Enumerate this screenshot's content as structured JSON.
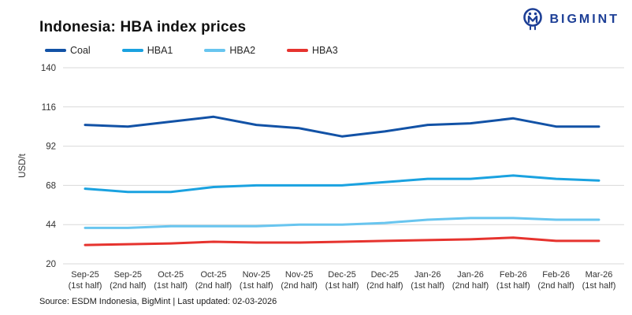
{
  "header": {
    "title": "Indonesia: HBA index prices",
    "brand": "BIGMINT"
  },
  "footer": {
    "source": "Source: ESDM Indonesia, BigMint | Last updated: 02-03-2026"
  },
  "colors": {
    "brand_blue": "#1d3f96",
    "gridline": "#d9d9d9",
    "axis_text": "#333333"
  },
  "chart_data": {
    "type": "line",
    "title": "Indonesia: HBA index prices",
    "xlabel": "",
    "ylabel": "USD/t",
    "ylim": [
      20,
      140
    ],
    "yticks": [
      20,
      44,
      68,
      92,
      116,
      140
    ],
    "grid": "horizontal",
    "legend_position": "top-left",
    "categories": [
      "Sep-25 (1st half)",
      "Sep-25 (2nd half)",
      "Oct-25 (1st half)",
      "Oct-25 (2nd half)",
      "Nov-25 (1st half)",
      "Nov-25 (2nd half)",
      "Dec-25 (1st half)",
      "Dec-25 (2nd half)",
      "Jan-26 (1st half)",
      "Jan-26 (2nd half)",
      "Feb-26 (1st half)",
      "Feb-26 (2nd half)",
      "Mar-26 (1st half)"
    ],
    "series": [
      {
        "name": "Coal",
        "color": "#1252a6",
        "values": [
          105,
          104,
          107,
          110,
          105,
          103,
          98,
          101,
          105,
          106,
          109,
          104,
          104
        ]
      },
      {
        "name": "HBA1",
        "color": "#1aa2e0",
        "values": [
          66,
          64,
          64,
          67,
          68,
          68,
          68,
          70,
          72,
          72,
          74,
          72,
          71
        ]
      },
      {
        "name": "HBA2",
        "color": "#68c5ef",
        "values": [
          42,
          42,
          43,
          43,
          43,
          44,
          44,
          45,
          47,
          48,
          48,
          47,
          47
        ]
      },
      {
        "name": "HBA3",
        "color": "#e6332e",
        "values": [
          31.5,
          32,
          32.5,
          33.5,
          33,
          33,
          33.5,
          34,
          34.5,
          35,
          36,
          34,
          34
        ]
      }
    ]
  }
}
